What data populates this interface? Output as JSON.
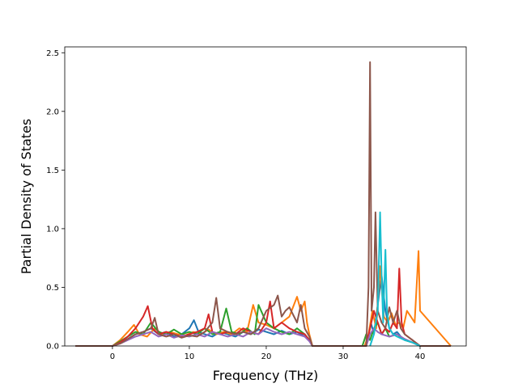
{
  "chart_data": {
    "type": "line",
    "title": "",
    "xlabel": "Frequency (THz)",
    "ylabel": "Partial Density of States",
    "xlim": [
      -6.2,
      46
    ],
    "ylim": [
      0,
      2.55
    ],
    "xticks": [
      0,
      10,
      20,
      30,
      40
    ],
    "yticks": [
      0.0,
      0.5,
      1.0,
      1.5,
      2.0,
      2.5
    ],
    "xtick_labels": [
      "0",
      "10",
      "20",
      "30",
      "40"
    ],
    "ytick_labels": [
      "0.0",
      "0.5",
      "1.0",
      "1.5",
      "2.0",
      "2.5"
    ],
    "grid": false,
    "legend": "none",
    "series": [
      {
        "color": "#1f77b4",
        "x": [
          -4.8,
          0.0,
          1.0,
          2.0,
          3.0,
          4.0,
          5.0,
          6.0,
          7.0,
          8.0,
          9.0,
          10.0,
          10.6,
          11.2,
          12.0,
          13.0,
          14.0,
          15.0,
          16.0,
          17.0,
          18.0,
          19.0,
          20.0,
          21.0,
          22.0,
          23.0,
          24.0,
          25.0,
          25.6,
          26.0,
          32.8,
          33.2,
          33.6,
          34.0,
          34.5,
          35.0,
          35.5,
          36.0,
          36.5,
          37.0,
          37.5,
          38.0,
          39.0,
          40.0,
          44.0
        ],
        "y": [
          0.0,
          0.0,
          0.03,
          0.06,
          0.1,
          0.12,
          0.15,
          0.1,
          0.12,
          0.08,
          0.1,
          0.15,
          0.22,
          0.12,
          0.1,
          0.08,
          0.12,
          0.1,
          0.08,
          0.12,
          0.1,
          0.14,
          0.12,
          0.1,
          0.13,
          0.1,
          0.12,
          0.08,
          0.05,
          0.0,
          0.0,
          0.05,
          0.2,
          0.1,
          0.35,
          0.6,
          0.3,
          0.15,
          0.1,
          0.12,
          0.08,
          0.05,
          0.03,
          0.0,
          0.0
        ]
      },
      {
        "color": "#ff7f0e",
        "x": [
          -4.8,
          0.0,
          1.0,
          2.0,
          2.8,
          3.5,
          4.5,
          5.5,
          6.5,
          7.5,
          8.5,
          9.5,
          10.5,
          11.5,
          12.5,
          13.5,
          14.5,
          15.5,
          16.5,
          17.5,
          18.3,
          19.0,
          20.0,
          21.0,
          22.0,
          23.0,
          24.0,
          24.5,
          25.0,
          25.3,
          25.6,
          26.0,
          32.8,
          33.3,
          33.8,
          34.3,
          34.8,
          35.3,
          35.8,
          36.3,
          36.8,
          37.3,
          37.8,
          38.3,
          38.8,
          39.3,
          39.8,
          40.0,
          44.0
        ],
        "y": [
          0.0,
          0.0,
          0.05,
          0.12,
          0.18,
          0.1,
          0.08,
          0.15,
          0.1,
          0.12,
          0.1,
          0.09,
          0.12,
          0.1,
          0.14,
          0.1,
          0.12,
          0.1,
          0.15,
          0.12,
          0.35,
          0.2,
          0.18,
          0.15,
          0.2,
          0.25,
          0.42,
          0.3,
          0.38,
          0.2,
          0.1,
          0.0,
          0.0,
          0.1,
          0.3,
          0.15,
          0.68,
          0.25,
          0.2,
          0.28,
          0.18,
          0.2,
          0.15,
          0.3,
          0.25,
          0.2,
          0.81,
          0.3,
          0.0
        ]
      },
      {
        "color": "#2ca02c",
        "x": [
          -4.8,
          0.0,
          1.0,
          2.0,
          3.0,
          4.0,
          5.0,
          6.0,
          7.0,
          8.0,
          9.0,
          10.0,
          11.0,
          12.0,
          13.0,
          14.0,
          14.8,
          15.5,
          16.5,
          17.5,
          18.5,
          19.0,
          20.0,
          21.0,
          22.0,
          23.0,
          24.0,
          25.0,
          25.6,
          26.0,
          32.5,
          33.0,
          33.5,
          34.0,
          34.5,
          35.0,
          35.5,
          36.0,
          37.0,
          38.0,
          39.0,
          40.0,
          44.0
        ],
        "y": [
          0.0,
          0.0,
          0.04,
          0.08,
          0.12,
          0.1,
          0.2,
          0.12,
          0.1,
          0.14,
          0.1,
          0.12,
          0.1,
          0.15,
          0.1,
          0.12,
          0.32,
          0.12,
          0.1,
          0.15,
          0.1,
          0.35,
          0.2,
          0.15,
          0.12,
          0.1,
          0.15,
          0.1,
          0.05,
          0.0,
          0.0,
          0.1,
          0.05,
          0.15,
          0.2,
          0.1,
          0.15,
          0.08,
          0.1,
          0.05,
          0.03,
          0.0,
          0.0
        ]
      },
      {
        "color": "#d62728",
        "x": [
          -4.8,
          0.0,
          1.0,
          2.0,
          3.0,
          4.0,
          4.6,
          5.2,
          6.0,
          7.0,
          8.0,
          9.0,
          10.0,
          11.0,
          12.0,
          12.5,
          13.0,
          14.0,
          15.0,
          16.0,
          17.0,
          18.0,
          19.0,
          20.0,
          20.5,
          21.0,
          22.0,
          23.0,
          24.0,
          25.0,
          25.6,
          26.0,
          33.0,
          33.5,
          34.0,
          34.5,
          35.0,
          35.5,
          36.0,
          36.5,
          37.0,
          37.3,
          37.6,
          38.0,
          39.0,
          40.0,
          44.0
        ],
        "y": [
          0.0,
          0.0,
          0.03,
          0.08,
          0.15,
          0.25,
          0.34,
          0.15,
          0.1,
          0.12,
          0.1,
          0.08,
          0.1,
          0.12,
          0.15,
          0.27,
          0.12,
          0.1,
          0.12,
          0.1,
          0.15,
          0.12,
          0.1,
          0.2,
          0.38,
          0.15,
          0.2,
          0.15,
          0.12,
          0.1,
          0.05,
          0.0,
          0.0,
          0.15,
          0.3,
          0.2,
          0.1,
          0.15,
          0.12,
          0.2,
          0.15,
          0.66,
          0.2,
          0.1,
          0.05,
          0.0,
          0.0
        ]
      },
      {
        "color": "#9467bd",
        "x": [
          -4.8,
          0.0,
          1.0,
          2.0,
          3.0,
          4.0,
          5.0,
          6.0,
          7.0,
          8.0,
          9.0,
          10.0,
          11.0,
          12.0,
          13.0,
          14.0,
          15.0,
          16.0,
          17.0,
          18.0,
          19.0,
          20.0,
          21.0,
          22.0,
          23.0,
          24.0,
          25.0,
          25.6,
          26.0,
          33.0,
          33.5,
          34.0,
          34.5,
          35.0,
          36.0,
          37.0,
          38.0,
          39.0,
          40.0,
          44.0
        ],
        "y": [
          0.0,
          0.0,
          0.02,
          0.05,
          0.08,
          0.1,
          0.12,
          0.08,
          0.1,
          0.07,
          0.09,
          0.08,
          0.1,
          0.08,
          0.12,
          0.1,
          0.08,
          0.1,
          0.08,
          0.12,
          0.1,
          0.15,
          0.12,
          0.1,
          0.12,
          0.1,
          0.08,
          0.04,
          0.0,
          0.0,
          0.1,
          0.15,
          0.12,
          0.1,
          0.08,
          0.1,
          0.06,
          0.03,
          0.0,
          0.0
        ]
      },
      {
        "color": "#8c564b",
        "x": [
          -4.8,
          0.0,
          1.0,
          2.0,
          3.0,
          4.0,
          5.0,
          5.5,
          6.0,
          7.0,
          8.0,
          9.0,
          10.0,
          11.0,
          12.0,
          13.0,
          13.5,
          14.0,
          15.0,
          16.0,
          17.0,
          18.0,
          19.0,
          20.0,
          21.0,
          21.5,
          22.0,
          22.5,
          23.0,
          24.0,
          24.5,
          25.0,
          25.6,
          26.0,
          33.0,
          33.3,
          33.5,
          33.7,
          34.0,
          34.2,
          34.5,
          35.0,
          35.5,
          36.0,
          36.5,
          37.0,
          37.5,
          38.0,
          39.0,
          40.0,
          44.0
        ],
        "y": [
          0.0,
          0.0,
          0.02,
          0.06,
          0.1,
          0.12,
          0.15,
          0.24,
          0.1,
          0.08,
          0.1,
          0.07,
          0.09,
          0.08,
          0.12,
          0.2,
          0.41,
          0.15,
          0.12,
          0.1,
          0.12,
          0.1,
          0.15,
          0.3,
          0.35,
          0.43,
          0.25,
          0.3,
          0.33,
          0.2,
          0.35,
          0.15,
          0.08,
          0.0,
          0.0,
          0.5,
          2.42,
          0.3,
          0.5,
          1.14,
          0.3,
          0.2,
          0.15,
          0.33,
          0.2,
          0.3,
          0.15,
          0.1,
          0.05,
          0.0,
          0.0
        ]
      },
      {
        "color": "#17becf",
        "x": [
          33.5,
          34.0,
          34.5,
          34.8,
          35.0,
          35.2,
          35.5,
          35.7,
          36.0,
          36.5,
          37.0,
          38.0,
          39.0,
          40.0
        ],
        "y": [
          0.0,
          0.1,
          0.3,
          1.14,
          0.6,
          0.2,
          0.82,
          0.3,
          0.15,
          0.1,
          0.08,
          0.05,
          0.03,
          0.0
        ]
      }
    ]
  }
}
